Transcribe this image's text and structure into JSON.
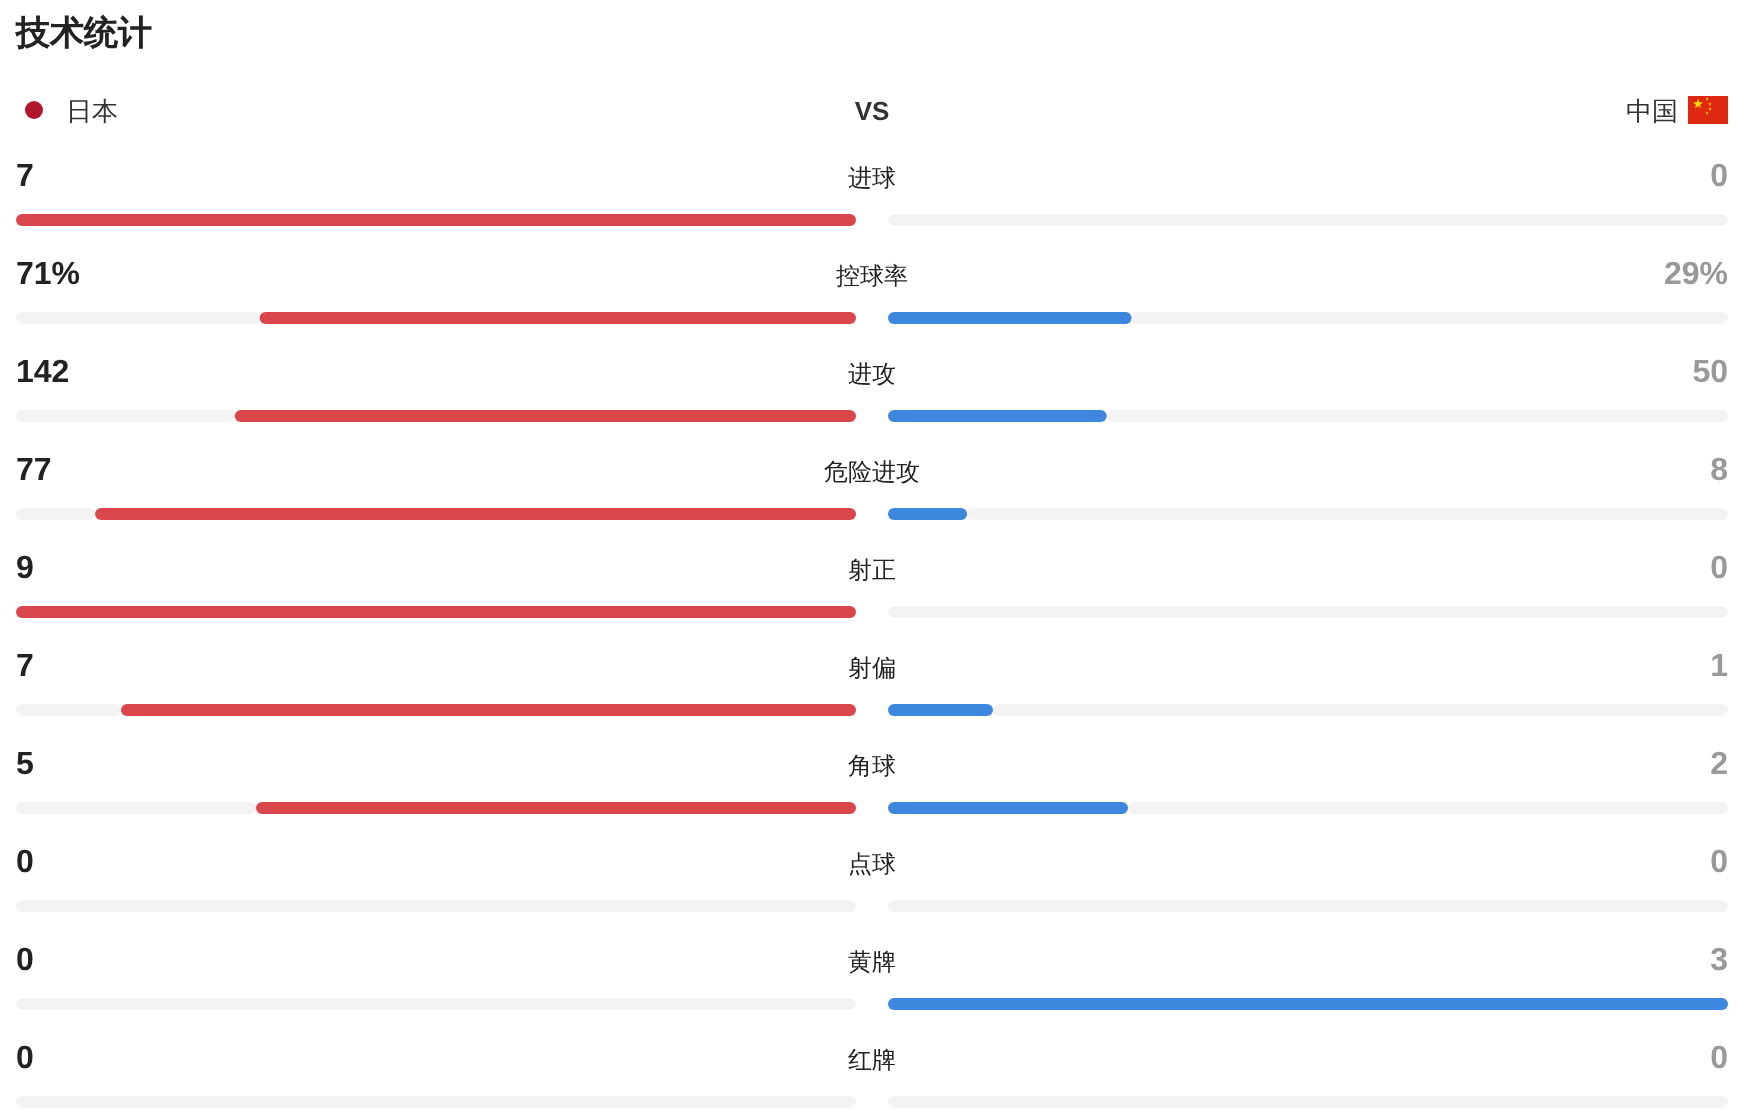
{
  "chart_data": {
    "type": "other",
    "title": "技术统计",
    "annotations": [
      "日本",
      "VS",
      "中国"
    ],
    "categories": [
      "进球",
      "控球率",
      "进攻",
      "危险进攻",
      "射正",
      "射偏",
      "角球",
      "点球",
      "黄牌",
      "红牌"
    ],
    "series": [
      {
        "color": "#d9474d",
        "values": [
          7,
          71,
          142,
          77,
          9,
          7,
          5,
          0,
          0,
          0
        ],
        "value_labels": [
          "7",
          "71%",
          "142",
          "77",
          "9",
          "7",
          "5",
          "0",
          "0",
          "0"
        ]
      },
      {
        "color": "#3d88de",
        "values": [
          0,
          29,
          50,
          8,
          0,
          1,
          2,
          0,
          3,
          0
        ],
        "value_labels": [
          "0",
          "29%",
          "50",
          "8",
          "0",
          "1",
          "2",
          "0",
          "3",
          "0"
        ]
      }
    ]
  }
}
